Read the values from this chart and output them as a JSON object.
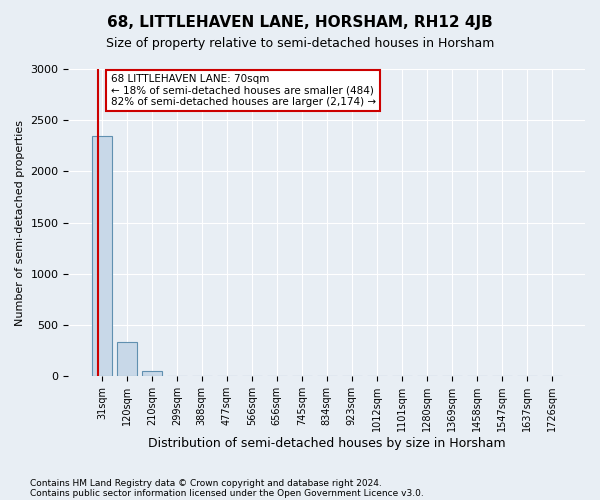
{
  "title": "68, LITTLEHAVEN LANE, HORSHAM, RH12 4JB",
  "subtitle": "Size of property relative to semi-detached houses in Horsham",
  "xlabel": "Distribution of semi-detached houses by size in Horsham",
  "ylabel": "Number of semi-detached properties",
  "bar_values": [
    2350,
    330,
    50,
    0,
    0,
    0,
    0,
    0,
    0,
    0,
    0,
    0,
    0,
    0,
    0,
    0,
    0,
    0,
    0
  ],
  "bar_color": "#c8d8e8",
  "bar_edge_color": "#6090b0",
  "x_labels": [
    "31sqm",
    "120sqm",
    "210sqm",
    "299sqm",
    "388sqm",
    "477sqm",
    "566sqm",
    "656sqm",
    "745sqm",
    "834sqm",
    "923sqm",
    "1012sqm",
    "1101sqm",
    "1280sqm",
    "1369sqm",
    "1458sqm",
    "1547sqm",
    "1637sqm",
    "1726sqm"
  ],
  "ylim": [
    0,
    3000
  ],
  "yticks": [
    0,
    500,
    1000,
    1500,
    2000,
    2500,
    3000
  ],
  "property_line_color": "#cc0000",
  "annotation_text": "68 LITTLEHAVEN LANE: 70sqm\n← 18% of semi-detached houses are smaller (484)\n82% of semi-detached houses are larger (2,174) →",
  "annotation_box_color": "#ffffff",
  "annotation_box_edge": "#cc0000",
  "footer1": "Contains HM Land Registry data © Crown copyright and database right 2024.",
  "footer2": "Contains public sector information licensed under the Open Government Licence v3.0.",
  "background_color": "#e8eef4",
  "plot_bg_color": "#e8eef4",
  "grid_color": "#ffffff"
}
